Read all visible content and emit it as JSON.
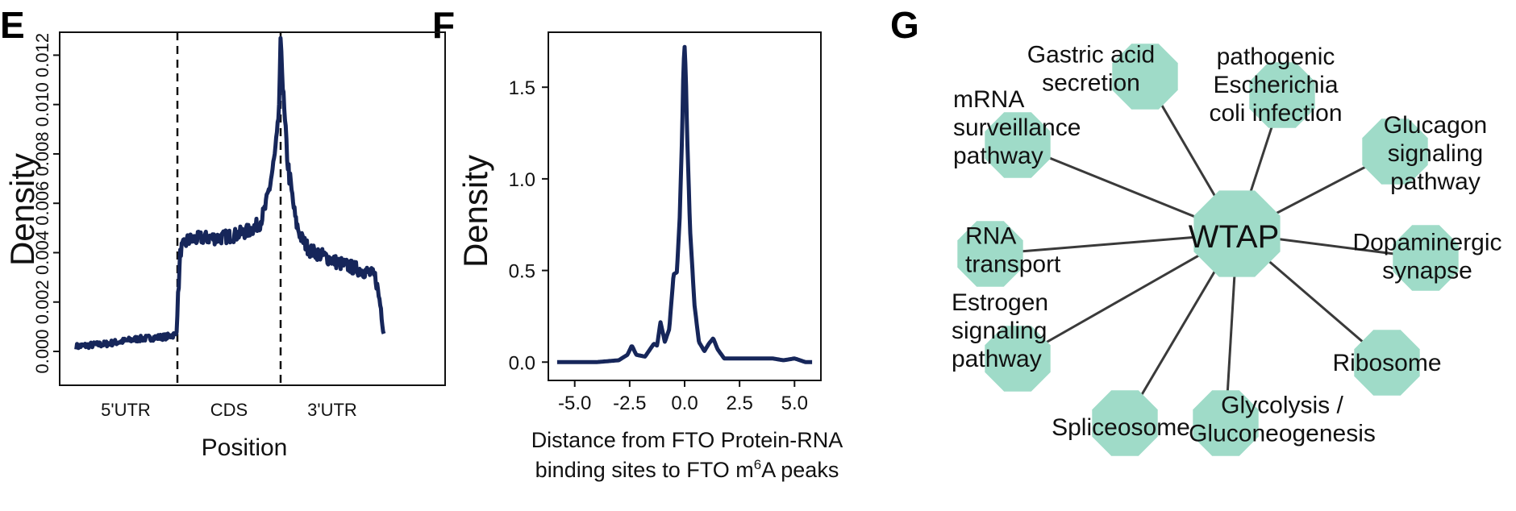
{
  "panels": {
    "e": "E",
    "f": "F",
    "g": "G"
  },
  "colors": {
    "line": "#16265a",
    "node": "#9fdbc8",
    "edge": "#3a3a3a"
  },
  "chart_data": [
    {
      "type": "line",
      "panel": "E",
      "title": "",
      "xlabel": "Position",
      "ylabel": "Density",
      "ylim": [
        0,
        0.0127
      ],
      "yticks": [
        0.0,
        0.002,
        0.004,
        0.006,
        0.008,
        0.01,
        0.012
      ],
      "ytick_labels": [
        "0.000",
        "0.002",
        "0.004",
        "0.006",
        "0.008",
        "0.010",
        "0.012"
      ],
      "xlim": [
        0,
        3
      ],
      "regions": [
        {
          "label": "5'UTR",
          "start": 0,
          "end": 1
        },
        {
          "label": "CDS",
          "start": 1,
          "end": 2
        },
        {
          "label": "3'UTR",
          "start": 2,
          "end": 3
        }
      ],
      "boundaries": [
        1,
        2
      ],
      "x": [
        0.02,
        0.15,
        0.3,
        0.45,
        0.6,
        0.75,
        0.9,
        0.99,
        1.01,
        1.03,
        1.1,
        1.25,
        1.4,
        1.55,
        1.7,
        1.8,
        1.85,
        1.9,
        1.94,
        1.97,
        1.99,
        2.0,
        2.01,
        2.02,
        2.04,
        2.07,
        2.1,
        2.15,
        2.2,
        2.28,
        2.4,
        2.55,
        2.7,
        2.85,
        2.92,
        2.97,
        3.0
      ],
      "y": [
        0.0002,
        0.00025,
        0.0003,
        0.0004,
        0.0005,
        0.00055,
        0.0006,
        0.0007,
        0.0025,
        0.0041,
        0.0045,
        0.0046,
        0.0046,
        0.0047,
        0.0049,
        0.0052,
        0.0058,
        0.0068,
        0.0078,
        0.0088,
        0.0104,
        0.0124,
        0.0122,
        0.0108,
        0.0093,
        0.0076,
        0.0066,
        0.0052,
        0.0046,
        0.0041,
        0.0039,
        0.0036,
        0.0034,
        0.0032,
        0.003,
        0.0018,
        0.0008
      ]
    },
    {
      "type": "line",
      "panel": "F",
      "title": "",
      "xlabel_line1": "Distance from FTO Protein-RNA",
      "xlabel_line2": "binding sites to FTO m6A peaks",
      "ylabel": "Density",
      "xlim": [
        -6.2,
        6.2
      ],
      "ylim": [
        -0.1,
        1.8
      ],
      "xticks": [
        -5.0,
        -2.5,
        0.0,
        2.5,
        5.0
      ],
      "xtick_labels": [
        "-5.0",
        "-2.5",
        "0.0",
        "2.5",
        "5.0"
      ],
      "yticks": [
        0.0,
        0.5,
        1.0,
        1.5
      ],
      "ytick_labels": [
        "0.0",
        "0.5",
        "1.0",
        "1.5"
      ],
      "x": [
        -5.8,
        -4.0,
        -3.0,
        -2.6,
        -2.4,
        -2.2,
        -1.8,
        -1.4,
        -1.25,
        -1.1,
        -0.9,
        -0.7,
        -0.5,
        -0.35,
        -0.22,
        -0.12,
        -0.05,
        0.0,
        0.05,
        0.12,
        0.25,
        0.45,
        0.65,
        0.9,
        1.1,
        1.3,
        1.5,
        1.8,
        2.2,
        3.0,
        4.0,
        4.5,
        5.0,
        5.5,
        5.8
      ],
      "y": [
        0.0,
        0.0,
        0.01,
        0.04,
        0.09,
        0.04,
        0.03,
        0.1,
        0.09,
        0.22,
        0.11,
        0.18,
        0.48,
        0.49,
        0.8,
        1.22,
        1.62,
        1.72,
        1.58,
        1.22,
        0.72,
        0.31,
        0.11,
        0.06,
        0.1,
        0.13,
        0.07,
        0.02,
        0.02,
        0.02,
        0.02,
        0.01,
        0.02,
        0.0,
        0.0
      ]
    }
  ],
  "network": {
    "hub": "WTAP",
    "nodes": [
      {
        "lines": [
          "Gastric acid",
          "secretion"
        ]
      },
      {
        "lines": [
          "pathogenic",
          "Escherichia",
          "coli infection"
        ]
      },
      {
        "lines": [
          "mRNA",
          "surveillance",
          "pathway"
        ]
      },
      {
        "lines": [
          "Glucagon",
          "signaling",
          "pathway"
        ]
      },
      {
        "lines": [
          "RNA",
          "transport"
        ]
      },
      {
        "lines": [
          "Dopaminergic",
          "synapse"
        ]
      },
      {
        "lines": [
          "Estrogen",
          "signaling",
          "pathway"
        ]
      },
      {
        "lines": [
          "Ribosome"
        ]
      },
      {
        "lines": [
          "Spliceosome"
        ]
      },
      {
        "lines": [
          "Glycolysis /",
          "Gluconeogenesis"
        ]
      }
    ]
  }
}
